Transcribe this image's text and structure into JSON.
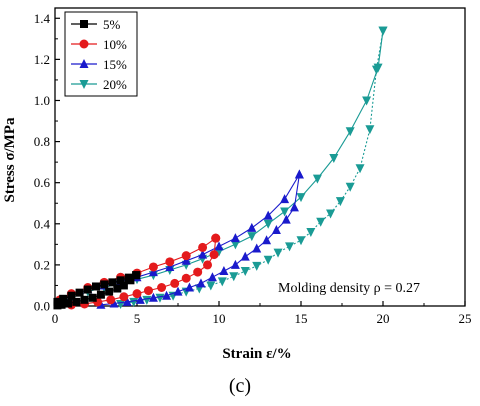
{
  "caption": "(c)",
  "chart_data": {
    "type": "line",
    "xlabel": "Strain ε/%",
    "ylabel": "Stress σ/MPa",
    "xlim": [
      0,
      25
    ],
    "ylim": [
      0,
      1.45
    ],
    "xticks": [
      0,
      5,
      10,
      15,
      20,
      25
    ],
    "yticks": [
      0.0,
      0.2,
      0.4,
      0.6,
      0.8,
      1.0,
      1.2,
      1.4
    ],
    "grid": false,
    "legend_position": "top-left",
    "annotation": "Molding density ρ = 0.27",
    "series": [
      {
        "name": "5%",
        "color": "#000000",
        "marker": "square",
        "loading": [
          [
            0.15,
            0.02
          ],
          [
            0.5,
            0.035
          ],
          [
            1.0,
            0.05
          ],
          [
            1.5,
            0.065
          ],
          [
            2.0,
            0.08
          ],
          [
            2.5,
            0.095
          ],
          [
            3.0,
            0.105
          ],
          [
            3.5,
            0.115
          ],
          [
            4.0,
            0.125
          ],
          [
            4.5,
            0.138
          ],
          [
            4.95,
            0.15
          ]
        ],
        "unloading": [
          [
            4.95,
            0.15
          ],
          [
            4.6,
            0.125
          ],
          [
            4.2,
            0.1
          ],
          [
            3.8,
            0.085
          ],
          [
            3.3,
            0.07
          ],
          [
            2.8,
            0.055
          ],
          [
            2.3,
            0.04
          ],
          [
            1.8,
            0.03
          ],
          [
            1.3,
            0.02
          ],
          [
            0.8,
            0.012
          ],
          [
            0.4,
            0.006
          ],
          [
            0.15,
            0.003
          ]
        ]
      },
      {
        "name": "10%",
        "color": "#e41a1c",
        "marker": "circle",
        "loading": [
          [
            0.3,
            0.03
          ],
          [
            1,
            0.06
          ],
          [
            2,
            0.09
          ],
          [
            3,
            0.115
          ],
          [
            4,
            0.14
          ],
          [
            5,
            0.16
          ],
          [
            6,
            0.19
          ],
          [
            7,
            0.215
          ],
          [
            8,
            0.245
          ],
          [
            9,
            0.285
          ],
          [
            9.8,
            0.33
          ]
        ],
        "unloading": [
          [
            9.8,
            0.33
          ],
          [
            9.7,
            0.25
          ],
          [
            9.3,
            0.2
          ],
          [
            8.7,
            0.165
          ],
          [
            8,
            0.135
          ],
          [
            7.3,
            0.11
          ],
          [
            6.5,
            0.09
          ],
          [
            5.7,
            0.075
          ],
          [
            5,
            0.06
          ],
          [
            4.2,
            0.045
          ],
          [
            3.4,
            0.03
          ],
          [
            2.6,
            0.02
          ],
          [
            1.8,
            0.01
          ],
          [
            1,
            0.005
          ]
        ]
      },
      {
        "name": "15%",
        "color": "#1a1acc",
        "marker": "triangle-up",
        "loading": [
          [
            0.3,
            0.03
          ],
          [
            1,
            0.05
          ],
          [
            2,
            0.08
          ],
          [
            3,
            0.1
          ],
          [
            4,
            0.12
          ],
          [
            5,
            0.14
          ],
          [
            6,
            0.165
          ],
          [
            7,
            0.19
          ],
          [
            8,
            0.22
          ],
          [
            9,
            0.25
          ],
          [
            10,
            0.29
          ],
          [
            11,
            0.33
          ],
          [
            12,
            0.38
          ],
          [
            13,
            0.44
          ],
          [
            14,
            0.52
          ],
          [
            14.9,
            0.64
          ]
        ],
        "unloading": [
          [
            14.9,
            0.64
          ],
          [
            14.6,
            0.48
          ],
          [
            14.1,
            0.42
          ],
          [
            13.5,
            0.37
          ],
          [
            12.9,
            0.32
          ],
          [
            12.3,
            0.28
          ],
          [
            11.6,
            0.24
          ],
          [
            11,
            0.2
          ],
          [
            10.3,
            0.17
          ],
          [
            9.6,
            0.14
          ],
          [
            8.9,
            0.11
          ],
          [
            8.2,
            0.09
          ],
          [
            7.5,
            0.07
          ],
          [
            6.8,
            0.05
          ],
          [
            6,
            0.04
          ],
          [
            5.2,
            0.03
          ],
          [
            4.4,
            0.02
          ],
          [
            3.6,
            0.012
          ],
          [
            2.8,
            0.006
          ]
        ]
      },
      {
        "name": "20%",
        "color": "#1a9b95",
        "marker": "triangle-down",
        "loading": [
          [
            0.3,
            0.02
          ],
          [
            1,
            0.04
          ],
          [
            2,
            0.07
          ],
          [
            3,
            0.09
          ],
          [
            4,
            0.11
          ],
          [
            5,
            0.13
          ],
          [
            6,
            0.15
          ],
          [
            7,
            0.175
          ],
          [
            8,
            0.2
          ],
          [
            9,
            0.23
          ],
          [
            10,
            0.265
          ],
          [
            11,
            0.3
          ],
          [
            12,
            0.34
          ],
          [
            13,
            0.4
          ],
          [
            14,
            0.46
          ],
          [
            15,
            0.53
          ],
          [
            16,
            0.62
          ],
          [
            17,
            0.72
          ],
          [
            18,
            0.85
          ],
          [
            19,
            1.0
          ],
          [
            19.7,
            1.16
          ],
          [
            20,
            1.34
          ]
        ],
        "unloading": [
          [
            20,
            1.34
          ],
          [
            19.6,
            1.15
          ],
          [
            19.2,
            0.86
          ],
          [
            18.6,
            0.67
          ],
          [
            18,
            0.58
          ],
          [
            17.4,
            0.51
          ],
          [
            16.8,
            0.45
          ],
          [
            16.2,
            0.41
          ],
          [
            15.6,
            0.36
          ],
          [
            15,
            0.32
          ],
          [
            14.3,
            0.29
          ],
          [
            13.6,
            0.26
          ],
          [
            13,
            0.225
          ],
          [
            12.3,
            0.195
          ],
          [
            11.6,
            0.17
          ],
          [
            10.9,
            0.145
          ],
          [
            10.2,
            0.12
          ],
          [
            9.5,
            0.1
          ],
          [
            8.8,
            0.085
          ],
          [
            8,
            0.07
          ],
          [
            7.2,
            0.05
          ],
          [
            6.4,
            0.04
          ],
          [
            5.6,
            0.03
          ],
          [
            4.8,
            0.02
          ],
          [
            4,
            0.01
          ]
        ]
      }
    ]
  }
}
